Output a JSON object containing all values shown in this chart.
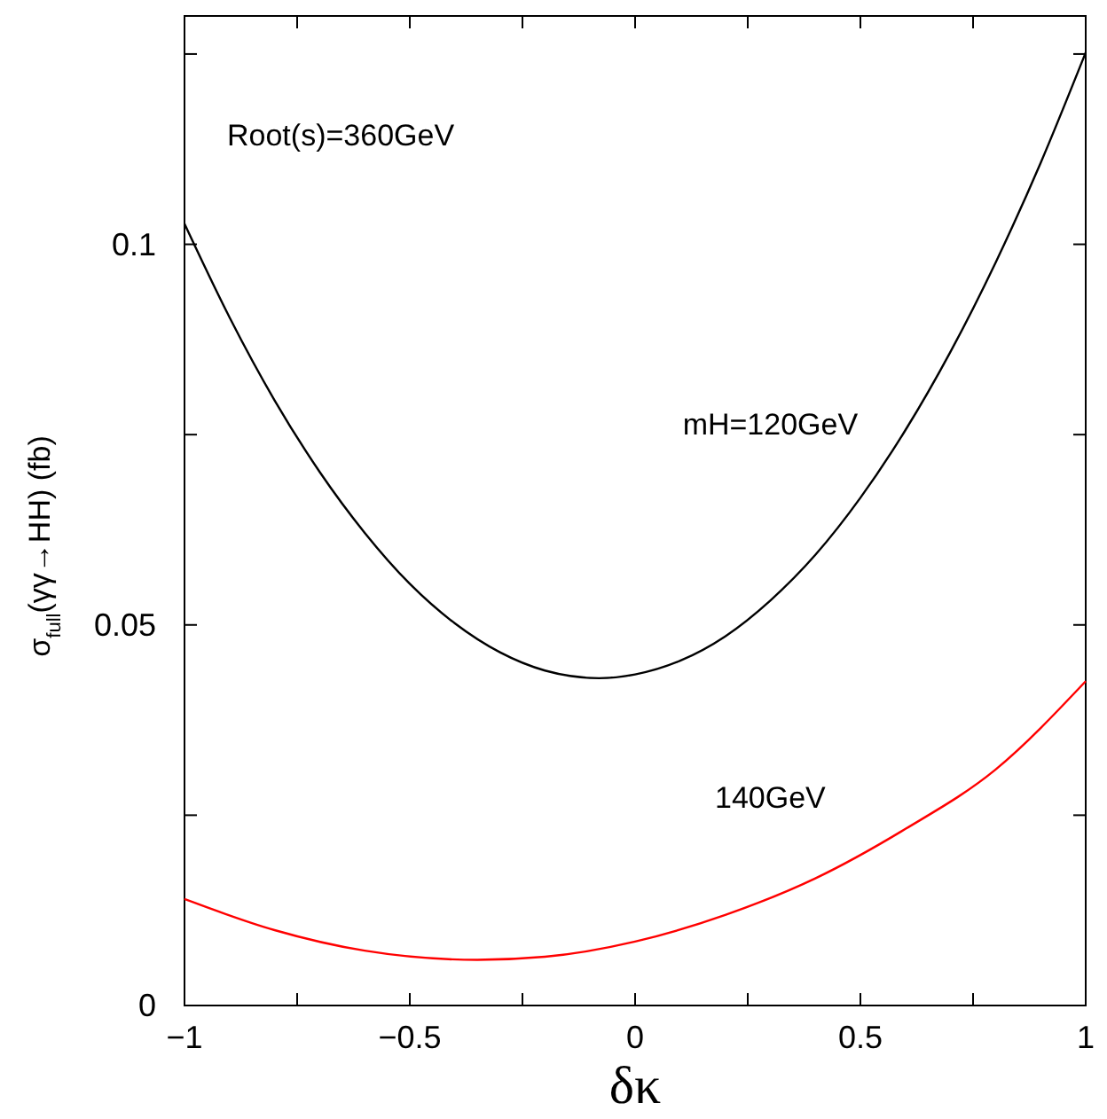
{
  "chart_data": {
    "type": "line",
    "xlabel": "δκ",
    "ylabel": "σ$_{full}$(γγ→HH)   (fb)",
    "annotations": [
      "Root(s)=360GeV"
    ],
    "series": [
      {
        "name": "mH=120GeV",
        "color": "#000000",
        "x": [
          -1,
          -0.9,
          -0.8,
          -0.7,
          -0.6,
          -0.5,
          -0.4,
          -0.3,
          -0.2,
          -0.08,
          0,
          0.1,
          0.2,
          0.3,
          0.4,
          0.5,
          0.6,
          0.7,
          0.8,
          0.9,
          1
        ],
        "values": [
          0.1027,
          0.0904,
          0.0795,
          0.0701,
          0.0621,
          0.0554,
          0.0502,
          0.0464,
          0.044,
          0.043,
          0.0435,
          0.0453,
          0.0485,
          0.0532,
          0.0592,
          0.0667,
          0.0756,
          0.0859,
          0.0976,
          0.1107,
          0.1252
        ]
      },
      {
        "name": "140GeV",
        "color": "#ff0000",
        "x": [
          -1,
          -0.8,
          -0.6,
          -0.35,
          -0.2,
          0,
          0.2,
          0.4,
          0.6,
          0.8,
          1
        ],
        "values": [
          0.014,
          0.0099,
          0.0072,
          0.006,
          0.0064,
          0.0084,
          0.0119,
          0.0167,
          0.0232,
          0.031,
          0.0426
        ]
      }
    ],
    "xlim": [
      -1,
      1
    ],
    "xticks": [
      -1,
      {
        "value": -0.75,
        "label": null
      },
      -0.5,
      {
        "value": -0.25,
        "label": null
      },
      0,
      {
        "value": 0.25,
        "label": null
      },
      0.5,
      {
        "value": 0.75,
        "label": null
      },
      1
    ],
    "ylim": [
      0,
      0.13
    ],
    "yticks": [
      0,
      {
        "value": 0.025,
        "label": null
      },
      0.05,
      {
        "value": 0.075,
        "label": null
      },
      0.1,
      {
        "value": 0.125,
        "label": null
      }
    ],
    "grid": false,
    "marker": "none",
    "line_style": "solid"
  }
}
